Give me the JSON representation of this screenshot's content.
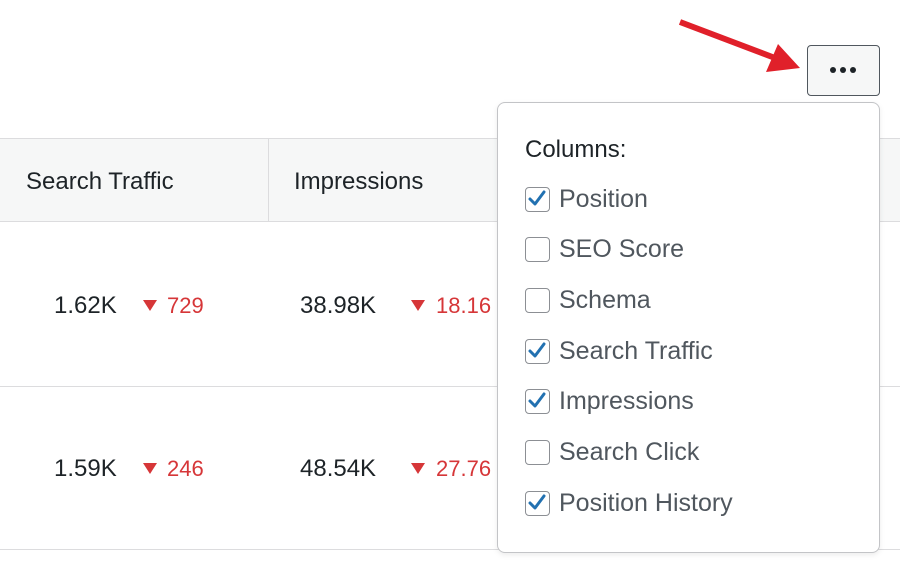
{
  "table": {
    "headers": [
      "Search Traffic",
      "Impressions"
    ],
    "rows": [
      {
        "traffic": "1.62K",
        "traffic_change": "729",
        "impressions": "38.98K",
        "impressions_change": "18.16"
      },
      {
        "traffic": "1.59K",
        "traffic_change": "246",
        "impressions": "48.54K",
        "impressions_change": "27.76"
      }
    ]
  },
  "menu": {
    "title": "Columns:",
    "items": [
      {
        "label": "Position",
        "checked": true
      },
      {
        "label": "SEO Score",
        "checked": false
      },
      {
        "label": "Schema",
        "checked": false
      },
      {
        "label": "Search Traffic",
        "checked": true
      },
      {
        "label": "Impressions",
        "checked": true
      },
      {
        "label": "Search Click",
        "checked": false
      },
      {
        "label": "Position History",
        "checked": true
      }
    ]
  }
}
